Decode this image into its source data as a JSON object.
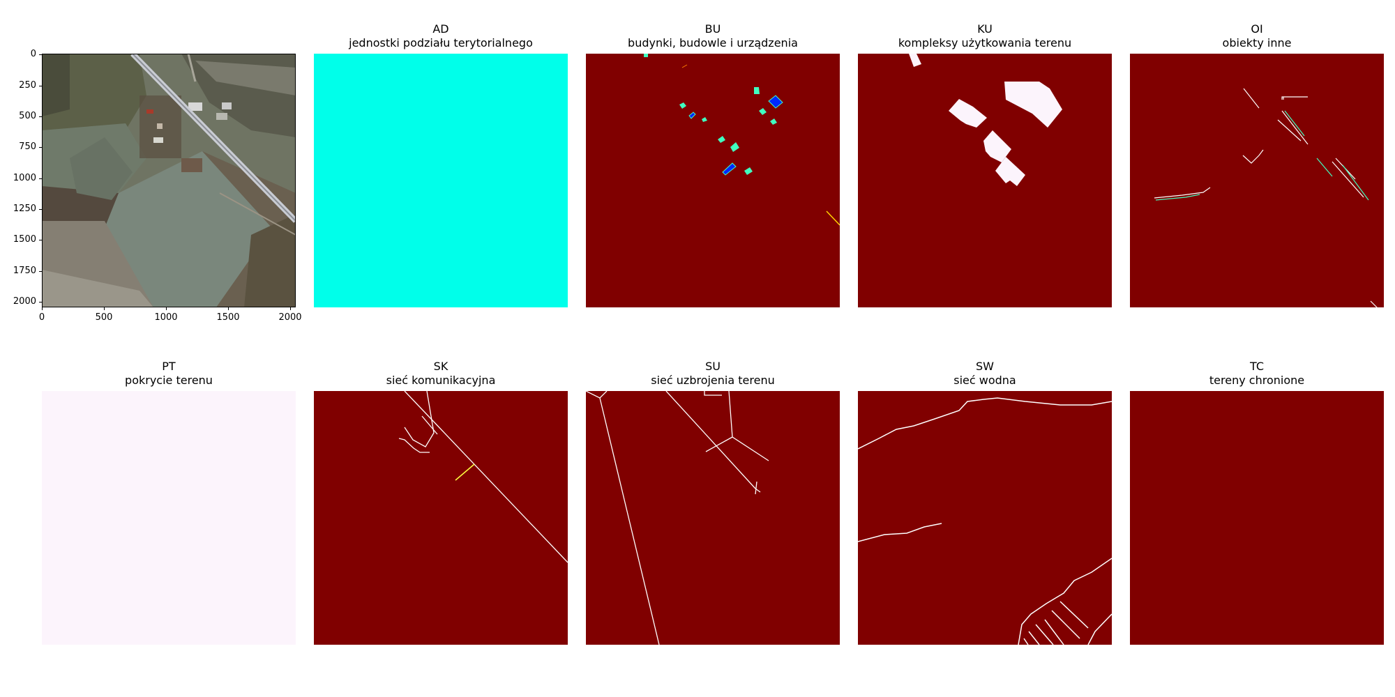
{
  "aerial_panel": {
    "y_ticks": [
      "0",
      "250",
      "500",
      "750",
      "1000",
      "1250",
      "1500",
      "1750",
      "2000"
    ],
    "x_ticks": [
      "0",
      "500",
      "1000",
      "1500",
      "2000"
    ]
  },
  "panels": [
    {
      "code": "AD",
      "label": "jednostki podziału terytorialnego"
    },
    {
      "code": "BU",
      "label": "budynki, budowle i urządzenia"
    },
    {
      "code": "KU",
      "label": "kompleksy użytkowania terenu"
    },
    {
      "code": "OI",
      "label": "obiekty inne"
    },
    {
      "code": "PT",
      "label": "pokrycie terenu"
    },
    {
      "code": "SK",
      "label": "sieć komunikacyjna"
    },
    {
      "code": "SU",
      "label": "sieć uzbrojenia terenu"
    },
    {
      "code": "SW",
      "label": "sieć wodna"
    },
    {
      "code": "TC",
      "label": "tereny chronione"
    }
  ],
  "colors": {
    "mask_background": "#800000",
    "ad_fill": "#00ffea",
    "pt_fill": "#fcf4fc",
    "line": "#ffffff",
    "accent_cyan": "#40ffc0",
    "accent_blue": "#0028ff",
    "accent_yellow": "#ffff40"
  }
}
